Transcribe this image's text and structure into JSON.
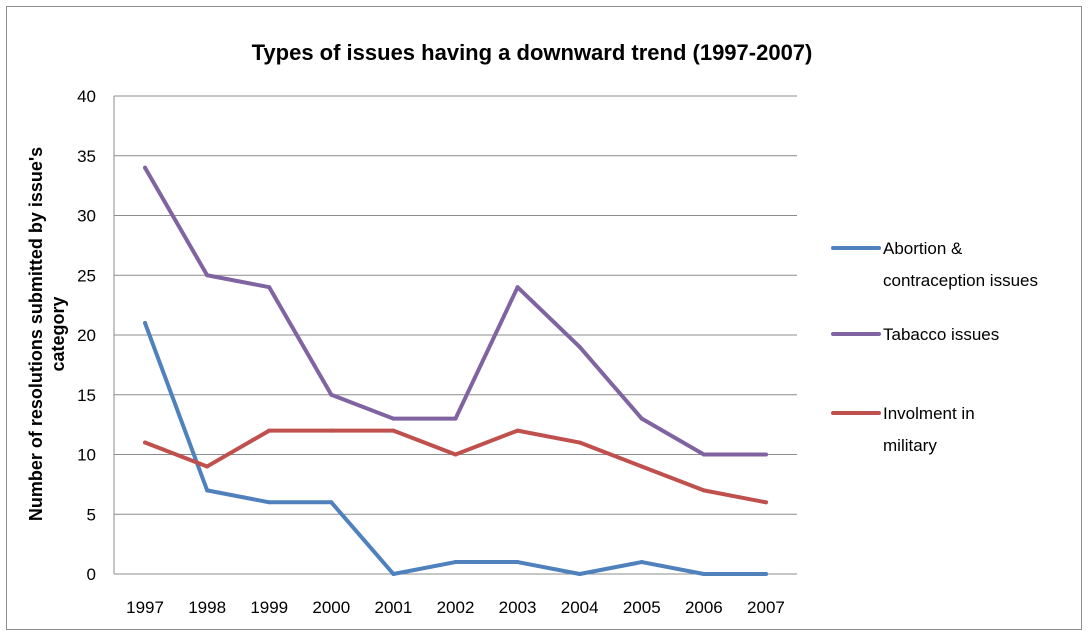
{
  "chart_data": {
    "type": "line",
    "title": "Types of issues having a downward trend (1997-2007)",
    "xlabel": "",
    "ylabel_lines": [
      "Number of resolutions submitted by issue's",
      "category"
    ],
    "ylim": [
      0,
      40
    ],
    "yticks": [
      0,
      5,
      10,
      15,
      20,
      25,
      30,
      35,
      40
    ],
    "grid": true,
    "legend_position": "right",
    "categories": [
      "1997",
      "1998",
      "1999",
      "2000",
      "2001",
      "2002",
      "2003",
      "2004",
      "2005",
      "2006",
      "2007"
    ],
    "series": [
      {
        "name": "Abortion & contraception issues",
        "legend_lines": [
          "Abortion &",
          "contraception issues"
        ],
        "color": "#4f81bd",
        "values": [
          21,
          7,
          6,
          6,
          0,
          1,
          1,
          0,
          1,
          0,
          0
        ]
      },
      {
        "name": "Tabacco issues",
        "legend_lines": [
          "Tabacco issues"
        ],
        "color": "#8064a2",
        "values": [
          34,
          25,
          24,
          15,
          13,
          13,
          24,
          19,
          13,
          10,
          10
        ]
      },
      {
        "name": "Involment in military",
        "legend_lines": [
          "Involment in",
          "military"
        ],
        "color": "#c0504d",
        "values": [
          11,
          9,
          12,
          12,
          12,
          10,
          12,
          11,
          9,
          7,
          6
        ]
      }
    ]
  }
}
